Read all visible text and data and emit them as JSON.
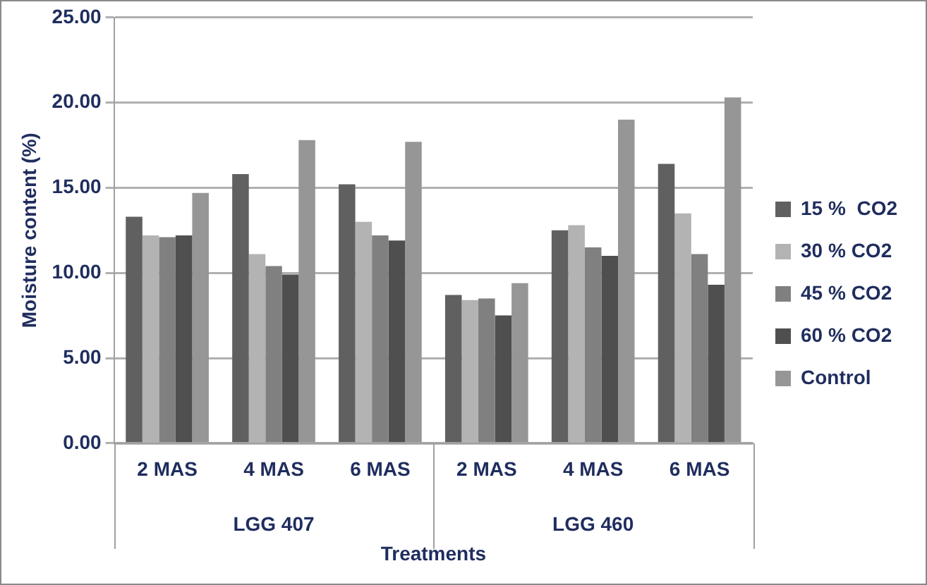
{
  "chart_data": {
    "type": "bar",
    "xlabel": "Treatments",
    "ylabel": "Moisture content (%)",
    "categories": [
      "2 MAS",
      "4 MAS",
      "6 MAS",
      "2 MAS",
      "4 MAS",
      "6 MAS"
    ],
    "annotations": [
      "LGG 407",
      "LGG 460"
    ],
    "series": [
      {
        "name": "15 %  CO2",
        "color": "#606060",
        "values": [
          13.3,
          15.8,
          15.2,
          8.7,
          12.5,
          16.4
        ]
      },
      {
        "name": "30 % CO2",
        "color": "#b3b3b3",
        "values": [
          12.2,
          11.1,
          13.0,
          8.4,
          12.8,
          13.5
        ]
      },
      {
        "name": "45 % CO2",
        "color": "#808080",
        "values": [
          12.1,
          10.4,
          12.2,
          8.5,
          11.5,
          11.1
        ]
      },
      {
        "name": "60 % CO2",
        "color": "#4f4f4f",
        "values": [
          12.2,
          9.9,
          11.9,
          7.5,
          11.0,
          9.3
        ]
      },
      {
        "name": "Control",
        "color": "#969696",
        "values": [
          14.7,
          17.8,
          17.7,
          9.4,
          19.0,
          20.3
        ]
      }
    ],
    "ylim": [
      0,
      25
    ],
    "yticks": [
      {
        "value": 0,
        "label": "0.00"
      },
      {
        "value": 5,
        "label": "5.00"
      },
      {
        "value": 10,
        "label": "10.00"
      },
      {
        "value": 15,
        "label": "15.00"
      },
      {
        "value": 20,
        "label": "20.00"
      },
      {
        "value": 25,
        "label": "25.00"
      }
    ],
    "grid": "y",
    "legend": "right"
  }
}
